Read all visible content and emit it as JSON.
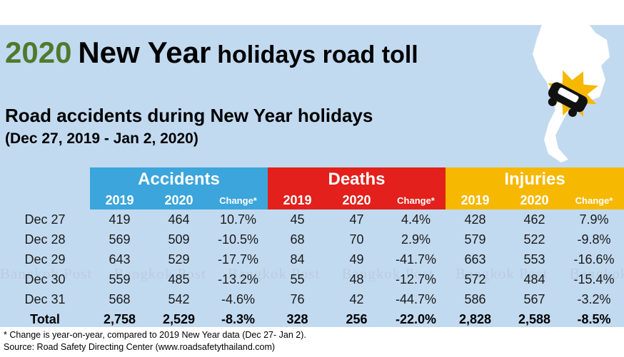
{
  "header": {
    "title_year": "2020",
    "title_main": "New Year",
    "title_rest": "holidays road toll",
    "subtitle": "Road accidents during New Year holidays",
    "period": "(Dec 27, 2019 - Jan 2, 2020)"
  },
  "watermark": "Bangkok Post",
  "icons": {
    "map": "thailand-map-icon",
    "car": "crashed-car-icon"
  },
  "colors": {
    "accidents": "#3ba5dc",
    "deaths": "#e3201b",
    "injuries": "#f6b800",
    "title_year": "#4f7a2e",
    "panel": "#c2daf0"
  },
  "chart_data": {
    "type": "table",
    "groups": [
      "Accidents",
      "Deaths",
      "Injuries"
    ],
    "sub_headers": [
      "2019",
      "2020",
      "Change*"
    ],
    "rows": [
      {
        "label": "Dec 27",
        "values": [
          "419",
          "464",
          "10.7%",
          "45",
          "47",
          "4.4%",
          "428",
          "462",
          "7.9%"
        ]
      },
      {
        "label": "Dec 28",
        "values": [
          "569",
          "509",
          "-10.5%",
          "68",
          "70",
          "2.9%",
          "579",
          "522",
          "-9.8%"
        ]
      },
      {
        "label": "Dec 29",
        "values": [
          "643",
          "529",
          "-17.7%",
          "84",
          "49",
          "-41.7%",
          "663",
          "553",
          "-16.6%"
        ]
      },
      {
        "label": "Dec 30",
        "values": [
          "559",
          "485",
          "-13.2%",
          "55",
          "48",
          "-12.7%",
          "572",
          "484",
          "-15.4%"
        ]
      },
      {
        "label": "Dec 31",
        "values": [
          "568",
          "542",
          "-4.6%",
          "76",
          "42",
          "-44.7%",
          "586",
          "567",
          "-3.2%"
        ]
      }
    ],
    "total": {
      "label": "Total",
      "values": [
        "2,758",
        "2,529",
        "-8.3%",
        "328",
        "256",
        "-22.0%",
        "2,828",
        "2,588",
        "-8.5%"
      ]
    }
  },
  "footnote": "* Change is year-on-year, compared to 2019 New Year data (Dec 27- Jan 2).",
  "source": "Source: Road Safety Directing Center (www.roadsafetythailand.com)"
}
